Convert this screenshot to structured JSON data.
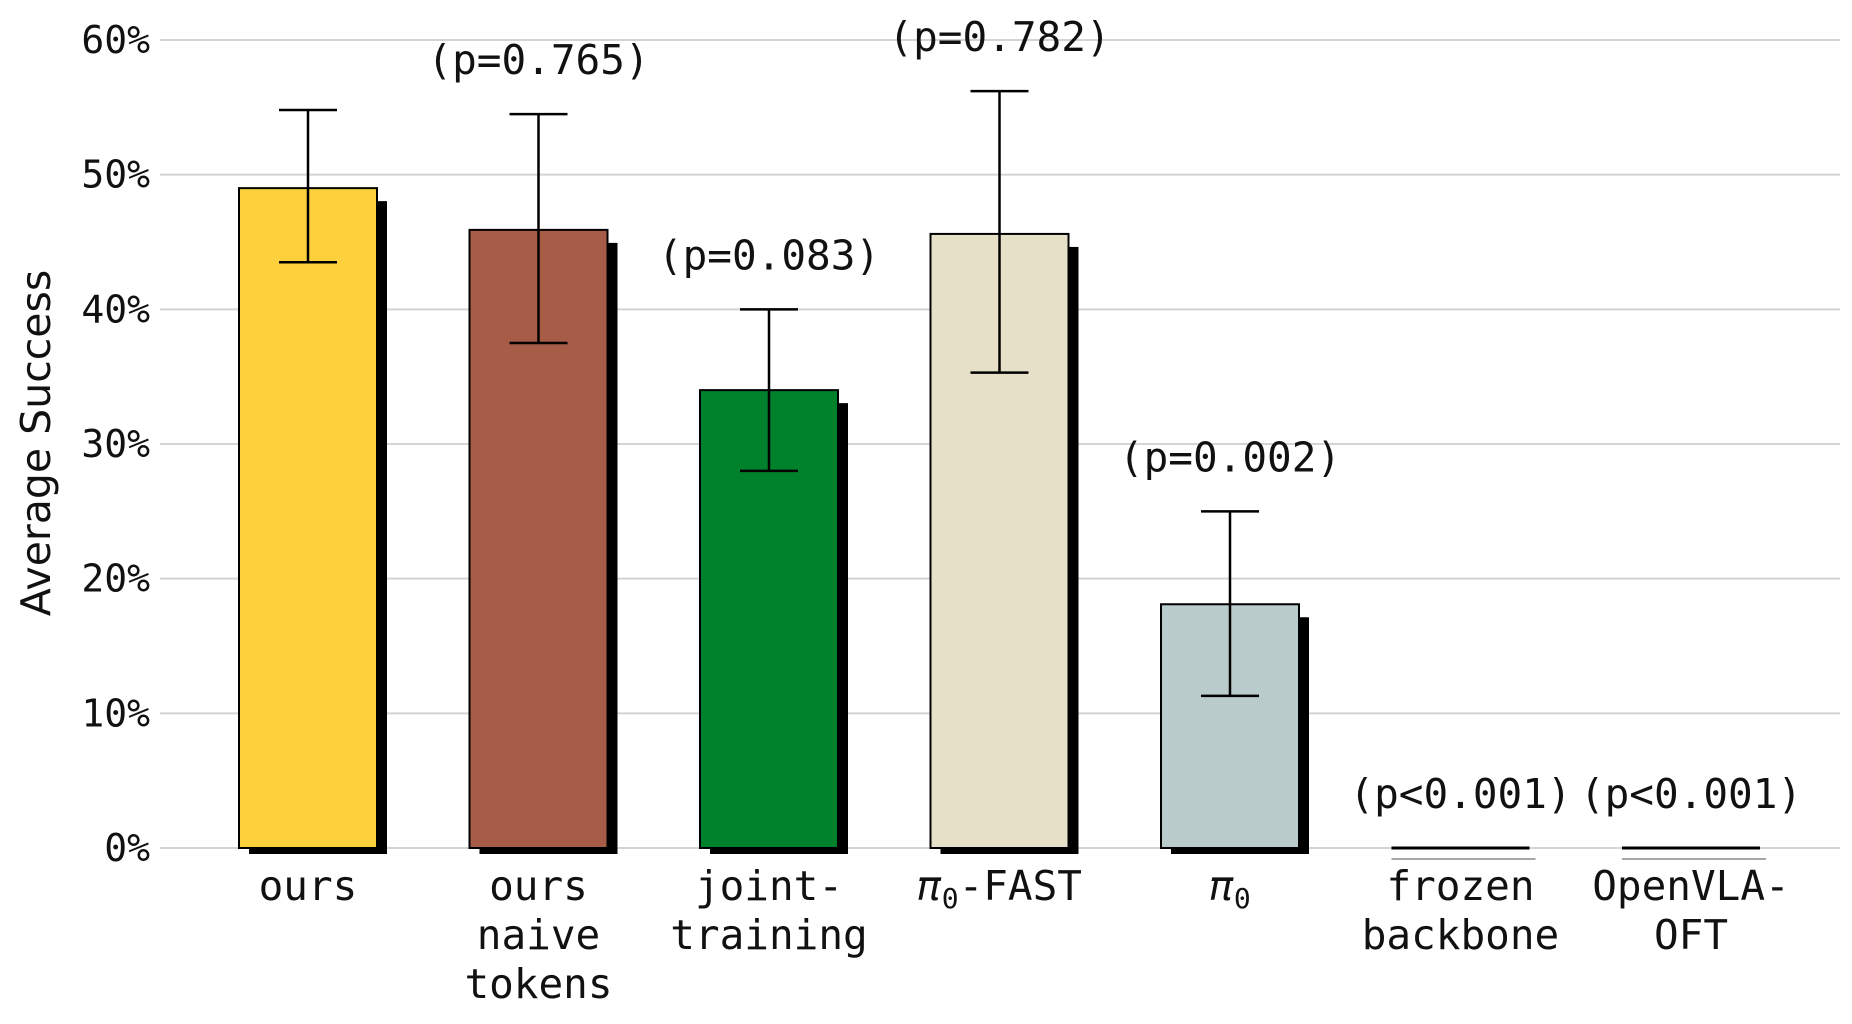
{
  "chart_data": {
    "type": "bar",
    "ylabel": "Average Success",
    "xlabel": "",
    "ylim": [
      0,
      60
    ],
    "yticks": [
      0,
      10,
      20,
      30,
      40,
      50,
      60
    ],
    "ytick_labels": [
      "0%",
      "10%",
      "20%",
      "30%",
      "40%",
      "50%",
      "60%"
    ],
    "grid": "horizontal",
    "categories": [
      [
        "ours"
      ],
      [
        "ours",
        "naive",
        "tokens"
      ],
      [
        "joint-",
        "training"
      ],
      [
        "π0-FAST"
      ],
      [
        "π0"
      ],
      [
        "frozen",
        "backbone"
      ],
      [
        "OpenVLA-",
        "OFT"
      ]
    ],
    "values": [
      49,
      45.9,
      34,
      45.6,
      18.1,
      0,
      0
    ],
    "error_low": [
      43.5,
      37.5,
      28,
      35.3,
      11.3,
      null,
      null
    ],
    "error_high": [
      54.8,
      54.5,
      40,
      56.2,
      25,
      null,
      null
    ],
    "annotations": [
      "",
      "(p=0.765)",
      "(p=0.083)",
      "(p=0.782)",
      "(p=0.002)",
      "(p<0.001)",
      "(p<0.001)"
    ],
    "colors": [
      "#fdd13c",
      "#a65c47",
      "#00822d",
      "#e6e0c8",
      "#b9cbca",
      "#ffffff",
      "#ffffff"
    ],
    "shadow_color": "#000000"
  }
}
